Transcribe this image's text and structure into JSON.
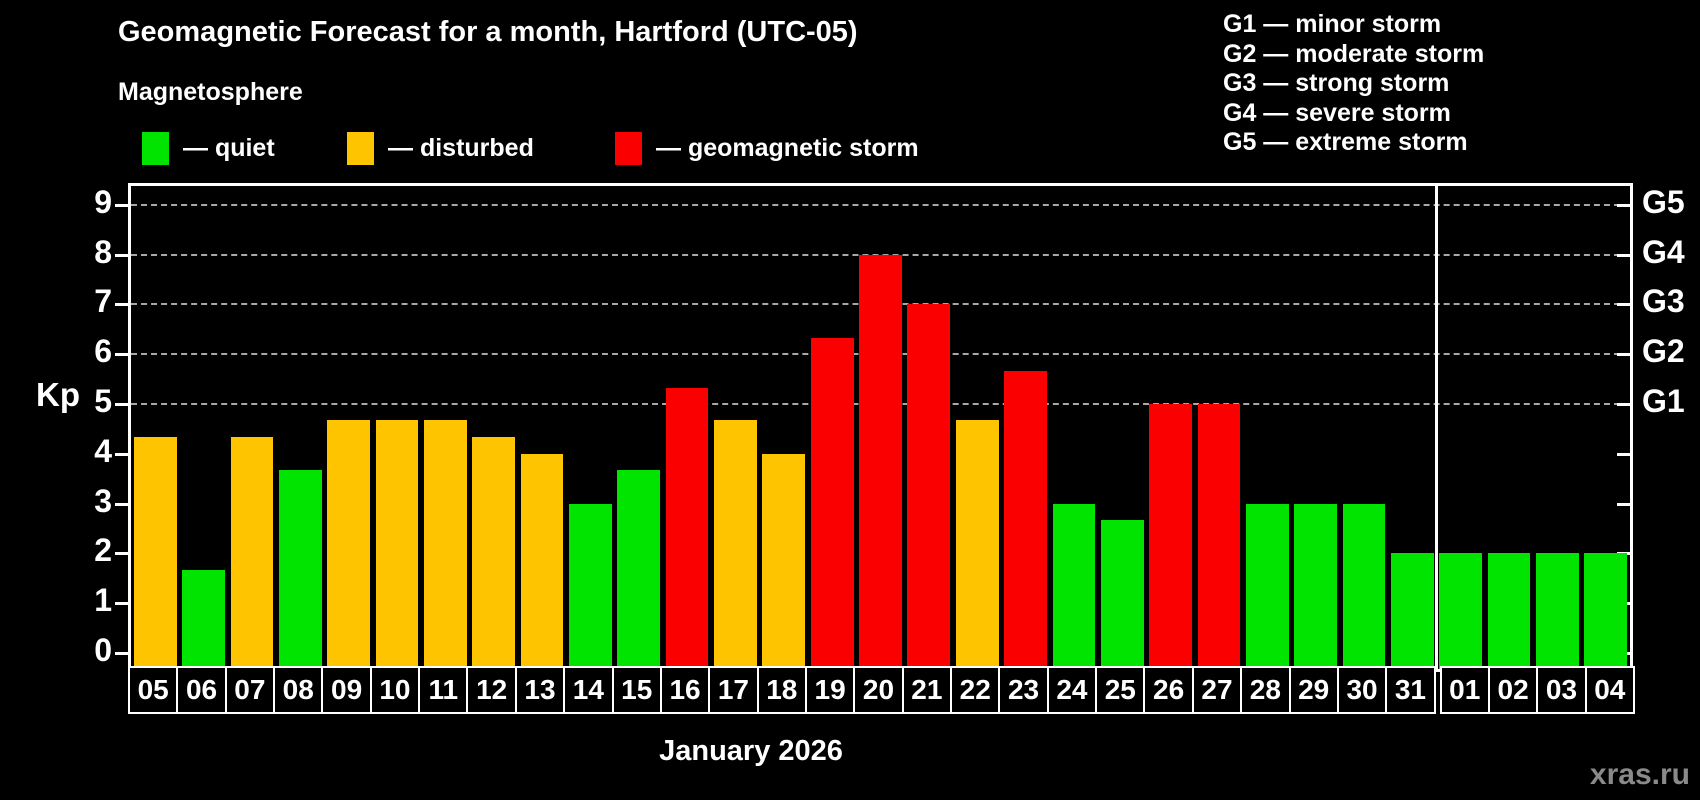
{
  "header": {
    "title": "Geomagnetic Forecast for a month, Hartford (UTC-05)",
    "subtitle": "Magnetosphere"
  },
  "legend": {
    "items": [
      {
        "key": "quiet",
        "label": "— quiet"
      },
      {
        "key": "disturbed",
        "label": "— disturbed"
      },
      {
        "key": "storm",
        "label": "— geomagnetic storm"
      }
    ]
  },
  "g_legend": {
    "lines": [
      "G1 — minor storm",
      "G2 — moderate storm",
      "G3 — strong storm",
      "G4 — severe storm",
      "G5 — extreme storm"
    ]
  },
  "colors": {
    "quiet": "#00E400",
    "disturbed": "#FFC400",
    "storm": "#FB0000",
    "axis": "#FFFFFF",
    "grid": "#A8A8A8",
    "watermark": "#8A8A8A"
  },
  "y_axis": {
    "label": "Kp",
    "ticks": [
      0,
      1,
      2,
      3,
      4,
      5,
      6,
      7,
      8,
      9
    ]
  },
  "right_axis": {
    "labels": [
      {
        "text": "G1",
        "kp": 5
      },
      {
        "text": "G2",
        "kp": 6
      },
      {
        "text": "G3",
        "kp": 7
      },
      {
        "text": "G4",
        "kp": 8
      },
      {
        "text": "G5",
        "kp": 9
      }
    ]
  },
  "x_axis": {
    "month_label": "January 2026"
  },
  "watermark": "xras.ru",
  "chart_data": {
    "type": "bar",
    "title": "Geomagnetic Forecast for a month, Hartford (UTC-05)",
    "xlabel": "January 2026",
    "ylabel": "Kp",
    "ylim": [
      0,
      9
    ],
    "gridlines_at": [
      5,
      6,
      7,
      8,
      9
    ],
    "grid": "dashed, only at storm levels G1–G5",
    "legend_position": "top-left",
    "month_boundary_after_index": 26,
    "categories": [
      "05",
      "06",
      "07",
      "08",
      "09",
      "10",
      "11",
      "12",
      "13",
      "14",
      "15",
      "16",
      "17",
      "18",
      "19",
      "20",
      "21",
      "22",
      "23",
      "24",
      "25",
      "26",
      "27",
      "28",
      "29",
      "30",
      "31",
      "01",
      "02",
      "03",
      "04"
    ],
    "values": [
      4.33,
      1.67,
      4.33,
      3.67,
      4.67,
      4.67,
      4.67,
      4.33,
      4.0,
      3.0,
      3.67,
      5.33,
      4.67,
      4.0,
      6.33,
      8.0,
      7.0,
      4.67,
      5.67,
      3.0,
      2.67,
      5.0,
      5.0,
      3.0,
      3.0,
      3.0,
      2.0,
      2.0,
      2.0,
      2.0,
      2.0
    ],
    "levels": [
      "disturbed",
      "quiet",
      "disturbed",
      "quiet",
      "disturbed",
      "disturbed",
      "disturbed",
      "disturbed",
      "disturbed",
      "quiet",
      "quiet",
      "storm",
      "disturbed",
      "disturbed",
      "storm",
      "storm",
      "storm",
      "disturbed",
      "storm",
      "quiet",
      "quiet",
      "storm",
      "storm",
      "quiet",
      "quiet",
      "quiet",
      "quiet",
      "quiet",
      "quiet",
      "quiet",
      "quiet"
    ]
  }
}
